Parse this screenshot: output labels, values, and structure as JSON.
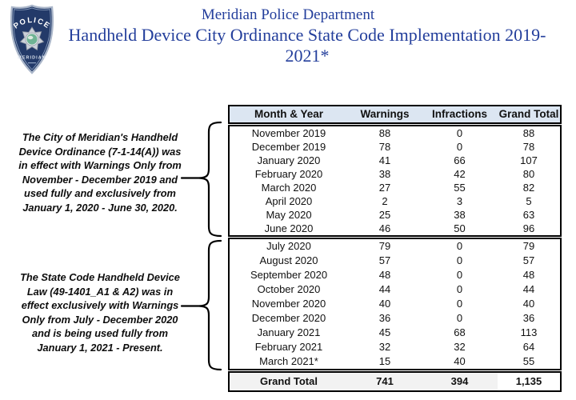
{
  "header": {
    "title_line1": "Meridian Police Department",
    "title_line2": "Handheld Device City Ordinance State Code Implementation 2019-2021*",
    "title_color": "#243f9c",
    "badge": {
      "top_text": "POLICE",
      "city_text": "MERIDIAN",
      "shield_color": "#233a69"
    }
  },
  "notes": [
    {
      "lines": [
        "The City of Meridian's Handheld",
        "Device Ordinance (7-1-14(A)) was",
        "in effect with Warnings Only from",
        "November - December 2019 and",
        "used fully and exclusively from",
        "January 1, 2020 - June 30, 2020."
      ]
    },
    {
      "lines": [
        "The State Code Handheld Device",
        "Law (49-1401_A1 & A2) was in",
        "effect exclusively with Warnings",
        "Only from July - December 2020",
        "and is being used fully from",
        "January 1, 2021 - Present."
      ]
    }
  ],
  "table": {
    "columns": [
      "Month & Year",
      "Warnings",
      "Infractions",
      "Grand Total"
    ],
    "header_bg": "#dce6f2",
    "section1": [
      {
        "month": "November 2019",
        "warnings": "88",
        "infractions": "0",
        "total": "88"
      },
      {
        "month": "December 2019",
        "warnings": "78",
        "infractions": "0",
        "total": "78"
      },
      {
        "month": "January 2020",
        "warnings": "41",
        "infractions": "66",
        "total": "107"
      },
      {
        "month": "February 2020",
        "warnings": "38",
        "infractions": "42",
        "total": "80"
      },
      {
        "month": "March 2020",
        "warnings": "27",
        "infractions": "55",
        "total": "82"
      },
      {
        "month": "April 2020",
        "warnings": "2",
        "infractions": "3",
        "total": "5"
      },
      {
        "month": "May 2020",
        "warnings": "25",
        "infractions": "38",
        "total": "63"
      },
      {
        "month": "June 2020",
        "warnings": "46",
        "infractions": "50",
        "total": "96"
      }
    ],
    "section2": [
      {
        "month": "July 2020",
        "warnings": "79",
        "infractions": "0",
        "total": "79"
      },
      {
        "month": "August 2020",
        "warnings": "57",
        "infractions": "0",
        "total": "57"
      },
      {
        "month": "September 2020",
        "warnings": "48",
        "infractions": "0",
        "total": "48"
      },
      {
        "month": "October 2020",
        "warnings": "44",
        "infractions": "0",
        "total": "44"
      },
      {
        "month": "November 2020",
        "warnings": "40",
        "infractions": "0",
        "total": "40"
      },
      {
        "month": "December 2020",
        "warnings": "36",
        "infractions": "0",
        "total": "36"
      },
      {
        "month": "January 2021",
        "warnings": "45",
        "infractions": "68",
        "total": "113"
      },
      {
        "month": "February 2021",
        "warnings": "32",
        "infractions": "32",
        "total": "64"
      },
      {
        "month": "March 2021*",
        "warnings": "15",
        "infractions": "40",
        "total": "55"
      }
    ],
    "grand_total": {
      "label": "Grand Total",
      "warnings": "741",
      "infractions": "394",
      "total": "1,135",
      "row_bg": "#f2f2f2"
    }
  }
}
